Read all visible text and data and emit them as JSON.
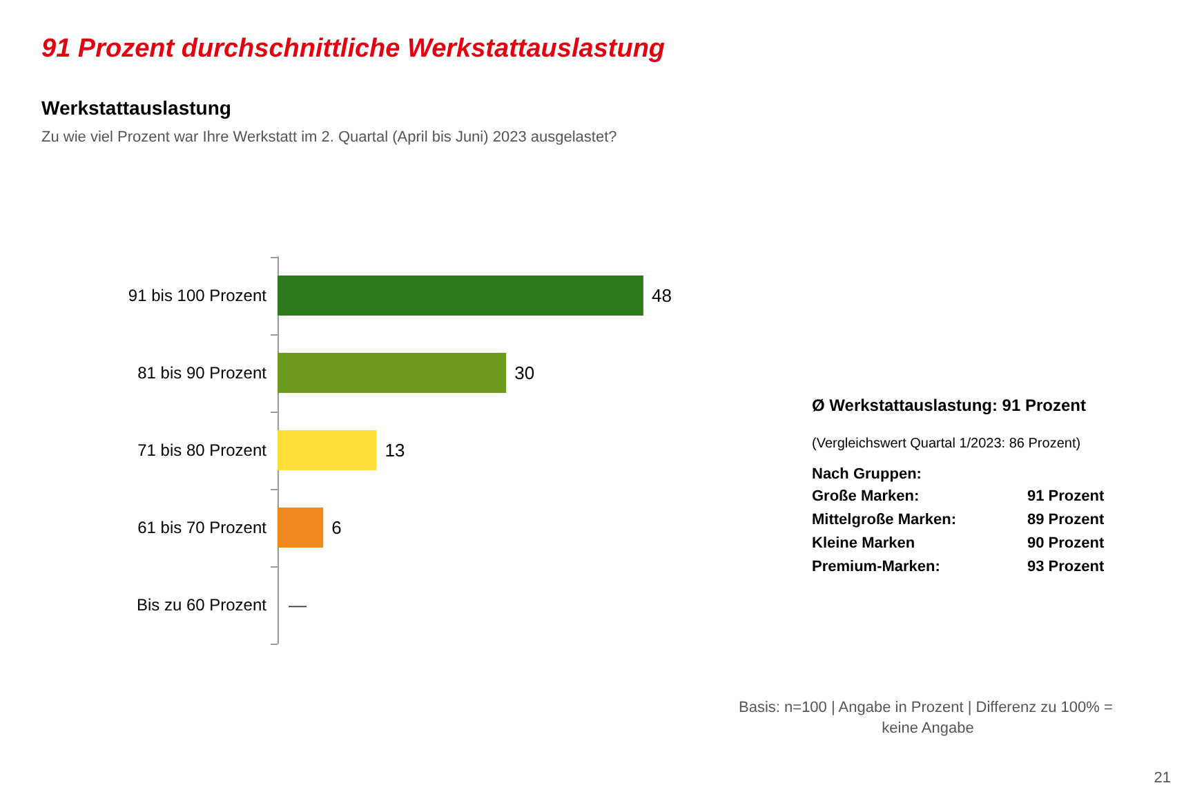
{
  "chart_data": {
    "type": "bar",
    "orientation": "horizontal",
    "title": "91 Prozent durchschnittliche Werkstattauslastung",
    "subtitle": "Werkstattauslastung",
    "categories": [
      "91 bis 100 Prozent",
      "81 bis 90 Prozent",
      "71 bis 80 Prozent",
      "61 bis 70 Prozent",
      "Bis zu 60 Prozent"
    ],
    "values": [
      48,
      30,
      13,
      6,
      null
    ],
    "colors": [
      "#2d7a1f",
      "#6f981f",
      "#ffe03a",
      "#f08a1e",
      null
    ],
    "value_labels": [
      "48",
      "30",
      "13",
      "6",
      "—"
    ],
    "annotations": [
      "Zu wie viel Prozent war Ihre Werkstatt im 2. Quartal (April bis Juni) 2023 ausgelastet?",
      "Ø Werkstattauslastung: 91 Prozent",
      "(Vergleichswert Quartal 1/2023: 86 Prozent)",
      "Nach Gruppen:",
      "Große Marken:",
      "91 Prozent",
      "Mittelgroße Marken:",
      "89 Prozent",
      "Kleine Marken",
      "90 Prozent",
      "Premium-Marken:",
      "93 Prozent",
      "Basis: n=100 | Angabe in Prozent | Differenz zu 100% = keine Angabe",
      "21"
    ]
  }
}
